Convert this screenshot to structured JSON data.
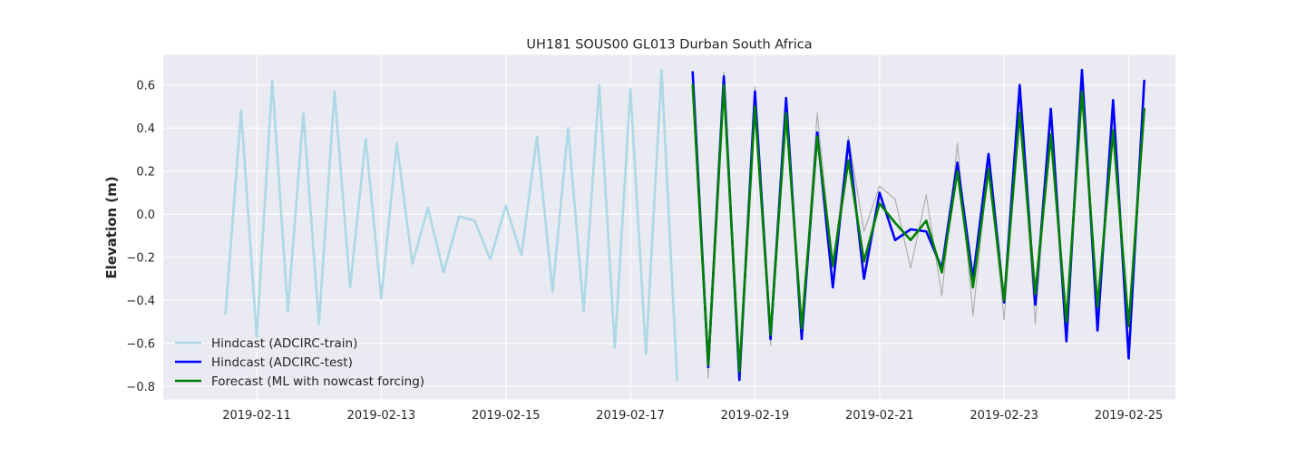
{
  "chart_data": {
    "type": "line",
    "title": "UH181 SOUS00 GL013 Durban South Africa",
    "xlabel": "",
    "ylabel": "Elevation (m)",
    "xlim": [
      "2019-02-09T12:00",
      "2019-02-25T18:00"
    ],
    "ylim": [
      -0.86,
      0.74
    ],
    "x_ticks": [
      "2019-02-11",
      "2019-02-13",
      "2019-02-15",
      "2019-02-17",
      "2019-02-19",
      "2019-02-21",
      "2019-02-23",
      "2019-02-25"
    ],
    "y_ticks": [
      -0.8,
      -0.6,
      -0.4,
      -0.2,
      0.0,
      0.2,
      0.4,
      0.6
    ],
    "y_tick_labels": [
      "−0.8",
      "−0.6",
      "−0.4",
      "−0.2",
      "0.0",
      "0.2",
      "0.4",
      "0.6"
    ],
    "grid": true,
    "legend_position": "bottom-left",
    "background": "#eaeaf2",
    "series": [
      {
        "name": "Hindcast (ADCIRC-train)",
        "color": "#add8e6",
        "x": [
          "2019-02-10T12:00",
          "2019-02-10T18:00",
          "2019-02-11T00:00",
          "2019-02-11T06:00",
          "2019-02-11T12:00",
          "2019-02-11T18:00",
          "2019-02-12T00:00",
          "2019-02-12T06:00",
          "2019-02-12T12:00",
          "2019-02-12T18:00",
          "2019-02-13T00:00",
          "2019-02-13T06:00",
          "2019-02-13T12:00",
          "2019-02-13T18:00",
          "2019-02-14T00:00",
          "2019-02-14T06:00",
          "2019-02-14T12:00",
          "2019-02-14T18:00",
          "2019-02-15T00:00",
          "2019-02-15T06:00",
          "2019-02-15T12:00",
          "2019-02-15T18:00",
          "2019-02-16T00:00",
          "2019-02-16T06:00",
          "2019-02-16T12:00",
          "2019-02-16T18:00",
          "2019-02-17T00:00",
          "2019-02-17T06:00",
          "2019-02-17T12:00",
          "2019-02-17T18:00"
        ],
        "values": [
          -0.46,
          0.48,
          -0.57,
          0.62,
          -0.45,
          0.47,
          -0.51,
          0.57,
          -0.34,
          0.35,
          -0.39,
          0.33,
          -0.23,
          0.03,
          -0.27,
          -0.01,
          -0.03,
          -0.21,
          0.04,
          -0.19,
          0.36,
          -0.36,
          0.4,
          -0.45,
          0.6,
          -0.62,
          0.58,
          -0.65,
          0.67,
          -0.77
        ]
      },
      {
        "name": "Hindcast (ADCIRC-test)",
        "color": "#0000ff",
        "x": [
          "2019-02-18T00:00",
          "2019-02-18T06:00",
          "2019-02-18T12:00",
          "2019-02-18T18:00",
          "2019-02-19T00:00",
          "2019-02-19T06:00",
          "2019-02-19T12:00",
          "2019-02-19T18:00",
          "2019-02-20T00:00",
          "2019-02-20T06:00",
          "2019-02-20T12:00",
          "2019-02-20T18:00",
          "2019-02-21T00:00",
          "2019-02-21T06:00",
          "2019-02-21T12:00",
          "2019-02-21T18:00",
          "2019-02-22T00:00",
          "2019-02-22T06:00",
          "2019-02-22T12:00",
          "2019-02-22T18:00",
          "2019-02-23T00:00",
          "2019-02-23T06:00",
          "2019-02-23T12:00",
          "2019-02-23T18:00",
          "2019-02-24T00:00",
          "2019-02-24T06:00",
          "2019-02-24T12:00",
          "2019-02-24T18:00",
          "2019-02-25T00:00",
          "2019-02-25T06:00"
        ],
        "values": [
          0.66,
          -0.71,
          0.64,
          -0.77,
          0.57,
          -0.58,
          0.54,
          -0.58,
          0.38,
          -0.34,
          0.34,
          -0.3,
          0.1,
          -0.12,
          -0.07,
          -0.08,
          -0.25,
          0.24,
          -0.3,
          0.28,
          -0.41,
          0.6,
          -0.42,
          0.49,
          -0.59,
          0.67,
          -0.54,
          0.53,
          -0.67,
          0.62
        ]
      },
      {
        "name": "Forecast (ML with nowcast forcing)",
        "color": "#008000",
        "x": [
          "2019-02-18T00:00",
          "2019-02-18T06:00",
          "2019-02-18T12:00",
          "2019-02-18T18:00",
          "2019-02-19T00:00",
          "2019-02-19T06:00",
          "2019-02-19T12:00",
          "2019-02-19T18:00",
          "2019-02-20T00:00",
          "2019-02-20T06:00",
          "2019-02-20T12:00",
          "2019-02-20T18:00",
          "2019-02-21T00:00",
          "2019-02-21T06:00",
          "2019-02-21T12:00",
          "2019-02-21T18:00",
          "2019-02-22T00:00",
          "2019-02-22T06:00",
          "2019-02-22T12:00",
          "2019-02-22T18:00",
          "2019-02-23T00:00",
          "2019-02-23T06:00",
          "2019-02-23T12:00",
          "2019-02-23T18:00",
          "2019-02-24T00:00",
          "2019-02-24T06:00",
          "2019-02-24T12:00",
          "2019-02-24T18:00",
          "2019-02-25T00:00",
          "2019-02-25T06:00"
        ],
        "values": [
          0.6,
          -0.7,
          0.6,
          -0.73,
          0.5,
          -0.56,
          0.47,
          -0.53,
          0.36,
          -0.24,
          0.25,
          -0.22,
          0.05,
          -0.04,
          -0.12,
          -0.03,
          -0.27,
          0.2,
          -0.34,
          0.21,
          -0.4,
          0.47,
          -0.37,
          0.37,
          -0.5,
          0.57,
          -0.43,
          0.39,
          -0.52,
          0.49
        ]
      },
      {
        "name": "",
        "color": "#b0b0b0",
        "x": [
          "2019-02-18T00:00",
          "2019-02-18T06:00",
          "2019-02-18T12:00",
          "2019-02-18T18:00",
          "2019-02-19T00:00",
          "2019-02-19T06:00",
          "2019-02-19T12:00",
          "2019-02-19T18:00",
          "2019-02-20T00:00",
          "2019-02-20T06:00",
          "2019-02-20T12:00",
          "2019-02-20T18:00",
          "2019-02-21T00:00",
          "2019-02-21T06:00",
          "2019-02-21T12:00",
          "2019-02-21T18:00",
          "2019-02-22T00:00",
          "2019-02-22T06:00",
          "2019-02-22T12:00",
          "2019-02-22T18:00",
          "2019-02-23T00:00",
          "2019-02-23T06:00",
          "2019-02-23T12:00",
          "2019-02-23T18:00",
          "2019-02-24T00:00",
          "2019-02-24T06:00",
          "2019-02-24T12:00",
          "2019-02-24T18:00",
          "2019-02-25T00:00",
          "2019-02-25T06:00"
        ],
        "values": [
          0.64,
          -0.76,
          0.66,
          -0.73,
          0.59,
          -0.61,
          0.52,
          -0.54,
          0.47,
          -0.25,
          0.36,
          -0.08,
          0.13,
          0.07,
          -0.25,
          0.09,
          -0.38,
          0.33,
          -0.47,
          0.24,
          -0.49,
          0.52,
          -0.51,
          0.44,
          -0.56,
          0.6,
          -0.48,
          0.45,
          -0.51,
          0.57
        ]
      }
    ]
  }
}
